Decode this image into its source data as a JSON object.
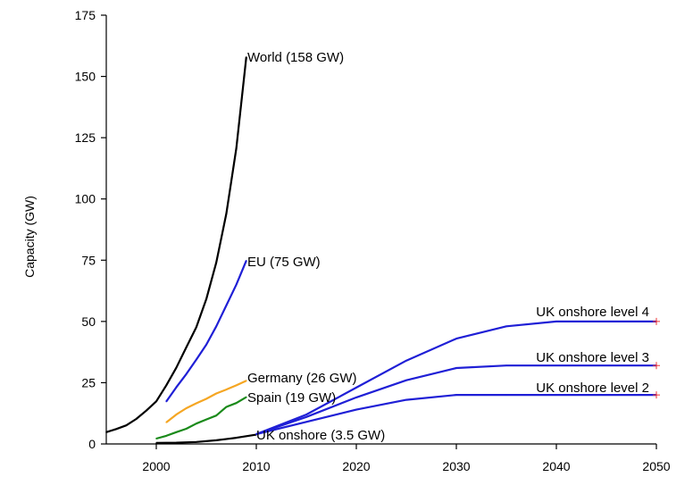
{
  "chart_data": {
    "type": "line",
    "title": "",
    "xlabel": "",
    "ylabel": "Capacity (GW)",
    "xlim": [
      1995,
      2050
    ],
    "ylim": [
      0,
      175
    ],
    "xticks": [
      2000,
      2010,
      2020,
      2030,
      2040,
      2050
    ],
    "yticks": [
      0,
      25,
      50,
      75,
      100,
      125,
      150,
      175
    ],
    "grid": false,
    "legend": "none",
    "series": [
      {
        "label": "World (158 GW)",
        "color": "#000000",
        "points": [
          [
            1995,
            4.8
          ],
          [
            1996,
            6.1
          ],
          [
            1997,
            7.6
          ],
          [
            1998,
            10.2
          ],
          [
            1999,
            13.6
          ],
          [
            2000,
            17.4
          ],
          [
            2001,
            23.9
          ],
          [
            2002,
            31.1
          ],
          [
            2003,
            39.4
          ],
          [
            2004,
            47.6
          ],
          [
            2005,
            59.1
          ],
          [
            2006,
            74.1
          ],
          [
            2007,
            93.9
          ],
          [
            2008,
            120.6
          ],
          [
            2009,
            157.9
          ]
        ]
      },
      {
        "label": "EU (75 GW)",
        "color": "#1f1fd6",
        "points": [
          [
            2001,
            17.3
          ],
          [
            2002,
            23.1
          ],
          [
            2003,
            28.5
          ],
          [
            2004,
            34.4
          ],
          [
            2005,
            40.5
          ],
          [
            2006,
            48.0
          ],
          [
            2007,
            56.5
          ],
          [
            2008,
            65.0
          ],
          [
            2009,
            74.8
          ]
        ]
      },
      {
        "label": "Germany (26 GW)",
        "color": "#f5a623",
        "points": [
          [
            2001,
            8.8
          ],
          [
            2002,
            12.0
          ],
          [
            2003,
            14.6
          ],
          [
            2004,
            16.6
          ],
          [
            2005,
            18.4
          ],
          [
            2006,
            20.6
          ],
          [
            2007,
            22.2
          ],
          [
            2008,
            23.9
          ],
          [
            2009,
            25.8
          ]
        ]
      },
      {
        "label": "Spain (19 GW)",
        "color": "#1a8a1a",
        "points": [
          [
            2000,
            2.2
          ],
          [
            2001,
            3.3
          ],
          [
            2002,
            4.8
          ],
          [
            2003,
            6.2
          ],
          [
            2004,
            8.3
          ],
          [
            2005,
            10.0
          ],
          [
            2006,
            11.6
          ],
          [
            2007,
            15.1
          ],
          [
            2008,
            16.7
          ],
          [
            2009,
            19.1
          ]
        ]
      },
      {
        "label": "UK onshore (3.5 GW)",
        "color": "#000000",
        "points": [
          [
            2000,
            0.4
          ],
          [
            2002,
            0.5
          ],
          [
            2004,
            0.8
          ],
          [
            2006,
            1.5
          ],
          [
            2008,
            2.5
          ],
          [
            2010,
            3.8
          ]
        ]
      },
      {
        "label": "UK onshore level 4",
        "color": "#1f1fd6",
        "points": [
          [
            2010,
            4
          ],
          [
            2015,
            12
          ],
          [
            2020,
            23
          ],
          [
            2025,
            34
          ],
          [
            2030,
            43
          ],
          [
            2035,
            48
          ],
          [
            2040,
            50
          ],
          [
            2050,
            50
          ]
        ]
      },
      {
        "label": "UK onshore level 3",
        "color": "#1f1fd6",
        "points": [
          [
            2010,
            4
          ],
          [
            2015,
            11
          ],
          [
            2020,
            19
          ],
          [
            2025,
            26
          ],
          [
            2030,
            31
          ],
          [
            2035,
            32
          ],
          [
            2040,
            32
          ],
          [
            2050,
            32
          ]
        ]
      },
      {
        "label": "UK onshore level 2",
        "color": "#1f1fd6",
        "points": [
          [
            2010,
            4
          ],
          [
            2015,
            9
          ],
          [
            2020,
            14
          ],
          [
            2025,
            18
          ],
          [
            2030,
            20
          ],
          [
            2035,
            20
          ],
          [
            2040,
            20
          ],
          [
            2050,
            20
          ]
        ]
      }
    ]
  }
}
